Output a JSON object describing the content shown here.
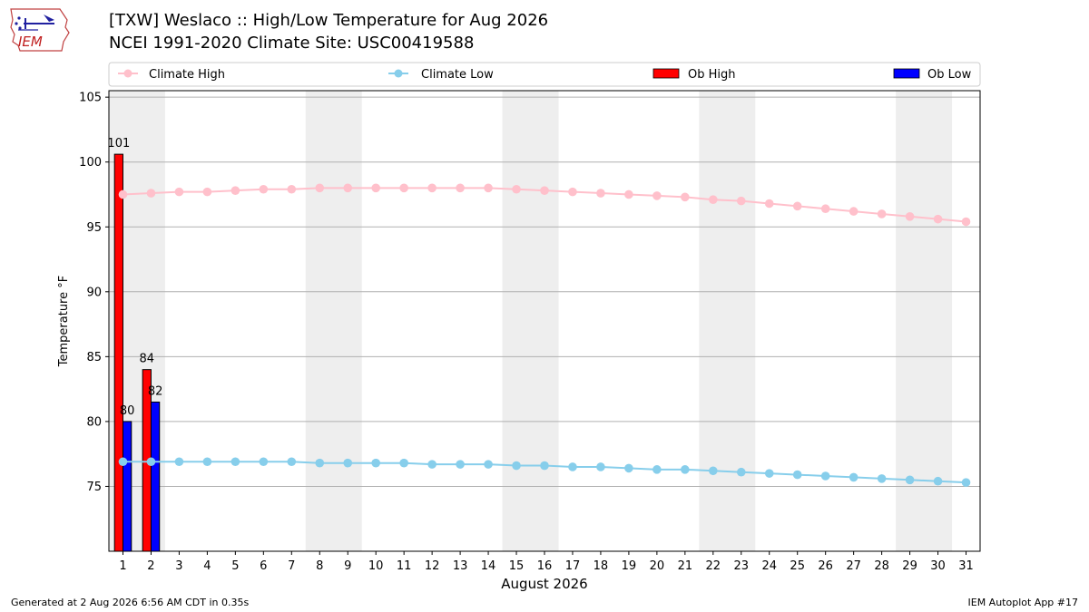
{
  "header": {
    "logo_text": "IEM",
    "title_line1": "[TXW] Weslaco :: High/Low Temperature for Aug 2026",
    "title_line2": "NCEI 1991-2020 Climate Site: USC00419588"
  },
  "footer": {
    "left": "Generated at 2 Aug 2026 6:56 AM CDT in 0.35s",
    "right": "IEM Autoplot App #17"
  },
  "colors": {
    "climate_high": "#ffc0cb",
    "climate_low": "#87ceeb",
    "ob_high": "#ff0000",
    "ob_low": "#0000ff",
    "weekend_band": "#eeeeee",
    "grid": "#b0b0b0"
  },
  "chart_data": {
    "type": "bar+line",
    "xlabel": "August 2026",
    "ylabel": "Temperature °F",
    "xlim": [
      0.5,
      31.5
    ],
    "ylim": [
      70,
      105.5
    ],
    "yticks": [
      75,
      80,
      85,
      90,
      95,
      100,
      105
    ],
    "grid": "horizontal",
    "legend_position": "top",
    "legend": [
      "Climate High",
      "Climate Low",
      "Ob High",
      "Ob Low"
    ],
    "days": [
      1,
      2,
      3,
      4,
      5,
      6,
      7,
      8,
      9,
      10,
      11,
      12,
      13,
      14,
      15,
      16,
      17,
      18,
      19,
      20,
      21,
      22,
      23,
      24,
      25,
      26,
      27,
      28,
      29,
      30,
      31
    ],
    "weekend_shading": [
      [
        1,
        2
      ],
      [
        8,
        9
      ],
      [
        15,
        16
      ],
      [
        22,
        23
      ],
      [
        29,
        30
      ]
    ],
    "climate_high": [
      97.5,
      97.6,
      97.7,
      97.7,
      97.8,
      97.9,
      97.9,
      98.0,
      98.0,
      98.0,
      98.0,
      98.0,
      98.0,
      98.0,
      97.9,
      97.8,
      97.7,
      97.6,
      97.5,
      97.4,
      97.3,
      97.1,
      97.0,
      96.8,
      96.6,
      96.4,
      96.2,
      96.0,
      95.8,
      95.6,
      95.4
    ],
    "climate_low": [
      76.9,
      76.9,
      76.9,
      76.9,
      76.9,
      76.9,
      76.9,
      76.8,
      76.8,
      76.8,
      76.8,
      76.7,
      76.7,
      76.7,
      76.6,
      76.6,
      76.5,
      76.5,
      76.4,
      76.3,
      76.3,
      76.2,
      76.1,
      76.0,
      75.9,
      75.8,
      75.7,
      75.6,
      75.5,
      75.4,
      75.3
    ],
    "ob_high": [
      {
        "day": 1,
        "value": 100.6,
        "label": "101"
      },
      {
        "day": 2,
        "value": 84.0,
        "label": "84"
      }
    ],
    "ob_low": [
      {
        "day": 1,
        "value": 80.0,
        "label": "80"
      },
      {
        "day": 2,
        "value": 81.5,
        "label": "82"
      }
    ]
  }
}
